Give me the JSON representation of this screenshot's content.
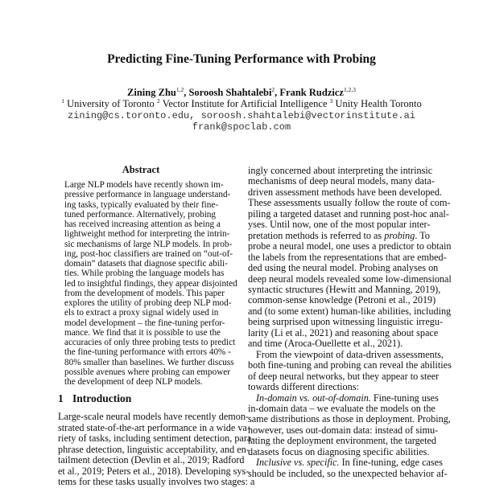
{
  "title": "Predicting Fine-Tuning Performance with Probing",
  "authors": [
    {
      "name": "Zining Zhu",
      "sup": "1,2"
    },
    {
      "name": "Soroosh Shahtalebi",
      "sup": "2"
    },
    {
      "name": "Frank Rudzicz",
      "sup": "1,2,3"
    }
  ],
  "affiliations": [
    {
      "sup": "1",
      "name": "University of Toronto"
    },
    {
      "sup": "2",
      "name": "Vector Institute for Artificial Intelligence"
    },
    {
      "sup": "3",
      "name": "Unity Health Toronto"
    }
  ],
  "emails": {
    "line1": "zining@cs.toronto.edu, soroosh.shahtalebi@vectorinstitute.ai",
    "line2": "frank@spoclab.com"
  },
  "abstract": {
    "heading": "Abstract",
    "paragraphs": [
      [
        "Large NLP models have recently shown im-",
        "pressive performance in language understand-",
        "ing tasks, typically evaluated by their fine-",
        "tuned performance.  Alternatively, probing",
        "has received increasing attention as being a",
        "lightweight method for interpreting the intrin-",
        "sic mechanisms of large NLP models. In prob-",
        "ing, post-hoc classifiers are trained on “out-of-",
        "domain” datasets that diagnose specific abili-",
        "ties. While probing the language models has",
        "led to insightful findings, they appear disjointed",
        "from the development of models. This paper",
        "explores the utility of probing deep NLP mod-",
        "els to extract a proxy signal widely used in",
        "model development – the fine-tuning perfor-",
        "mance. We find that it is possible to use the",
        "accuracies of only three probing tests to predict",
        "the fine-tuning performance with errors 40% -",
        "80% smaller than baselines. We further discuss",
        "possible avenues where probing can empower",
        "the development of deep NLP models."
      ]
    ]
  },
  "introduction": {
    "number": "1",
    "heading": "Introduction",
    "left_paragraphs": [
      [
        "Large-scale neural models have recently demon-",
        "strated state-of-the-art performance in a wide va-",
        "riety of tasks, including sentiment detection, para-",
        "phrase detection, linguistic acceptability, and en-",
        "tailment detection (Devlin et al., 2019; Radford",
        "et al., 2019; Peters et al., 2018). Developing sys-",
        "tems for these tasks usually involves two stages: a"
      ]
    ],
    "right_paragraphs": [
      [
        "ingly concerned about interpreting the intrinsic",
        "mechanisms of deep neural models, many data-",
        "driven assessment methods have been developed.",
        "These assessments usually follow the route of com-",
        "piling a targeted dataset and running post-hoc anal-",
        "yses.  Until now, one of the most popular inter-",
        [
          [
            "pretation methods is referred to as ",
            false
          ],
          [
            "probing",
            true
          ],
          [
            ".  To",
            false
          ]
        ],
        "probe a neural model, one uses a predictor to obtain",
        "the labels from the representations that are embed-",
        "ded using the neural model. Probing analyses on",
        "deep neural models revealed some low-dimensional",
        "syntactic structures (Hewitt and Manning, 2019),",
        "common-sense knowledge (Petroni et al., 2019)",
        "and (to some extent) human-like abilities, including",
        "being surprised upon witnessing linguistic irregu-",
        "larity (Li et al., 2021) and reasoning about space",
        "and time (Aroca-Ouellette et al., 2021)."
      ],
      [
        "From the viewpoint of data-driven assessments,",
        "both fine-tuning and probing can reveal the abilities",
        "of deep neural networks, but they appear to steer",
        "towards different directions:"
      ],
      [
        [
          [
            "In-domain vs. out-of-domain.",
            true
          ],
          [
            " Fine-tuning uses",
            false
          ]
        ],
        "in-domain data – we evaluate the models on the",
        "same distributions as those in deployment. Probing,",
        "however, uses out-domain data:  instead of simu-",
        "lating the deployment environment, the targeted",
        "datasets focus on diagnosing specific abilities."
      ],
      [
        [
          [
            "Inclusive vs. specific.",
            true
          ],
          [
            " In fine-tuning, edge cases",
            false
          ]
        ],
        "should be included, so the unexpected behavior af-"
      ]
    ],
    "incomplete_paragraphs": [
      "right_paragraphs.3",
      "left_paragraphs.0"
    ]
  }
}
